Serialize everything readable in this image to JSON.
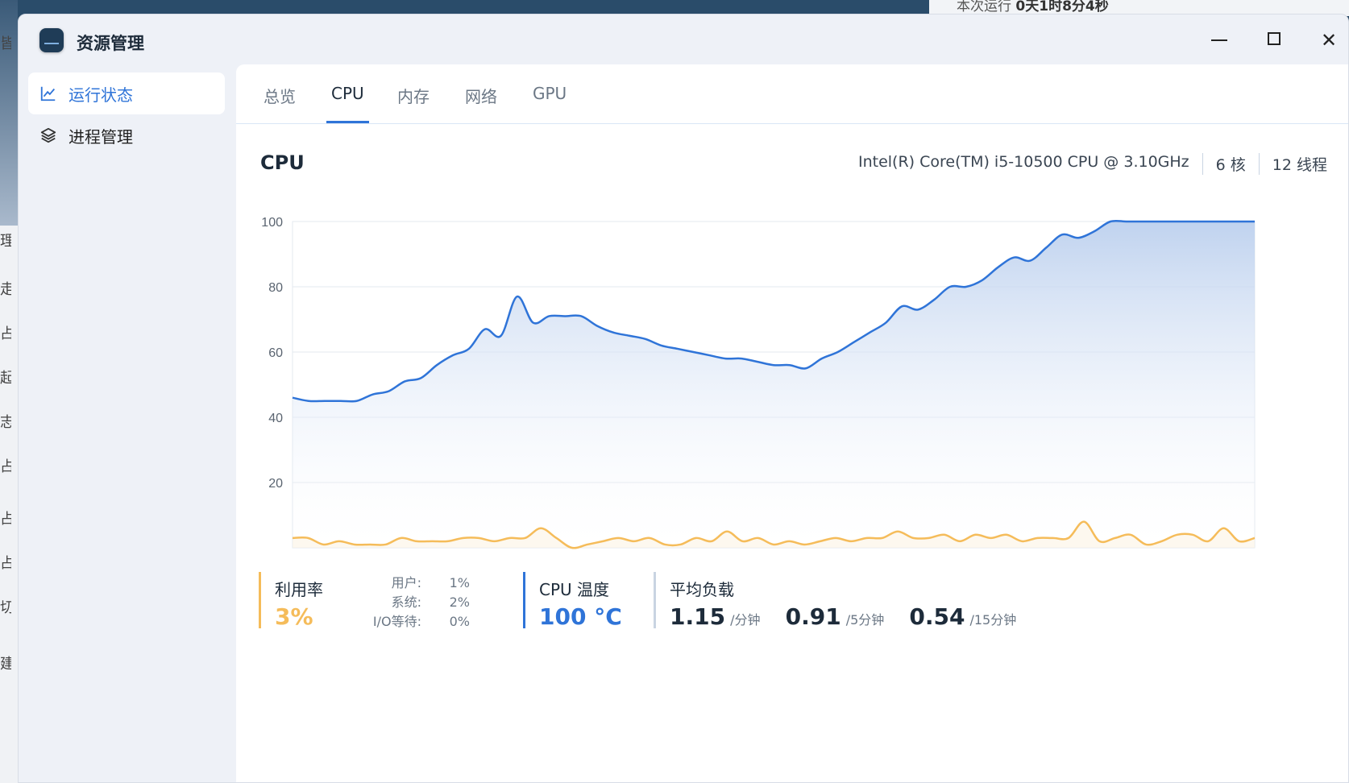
{
  "background": {
    "uptime_label": "本次运行",
    "uptime_value": "0天1时8分4秒",
    "left_glyphs": [
      "皆",
      "理",
      "走",
      "占",
      "起",
      "志",
      "占",
      "占",
      "占",
      "切",
      "建"
    ]
  },
  "window": {
    "title": "资源管理",
    "minimize_label": "—",
    "maximize_label": "□",
    "close_label": "✕"
  },
  "sidebar": {
    "items": [
      {
        "label": "运行状态",
        "icon": "line-chart-icon",
        "active": true
      },
      {
        "label": "进程管理",
        "icon": "layers-icon",
        "active": false
      }
    ]
  },
  "tabs": [
    {
      "label": "总览",
      "active": false
    },
    {
      "label": "CPU",
      "active": true
    },
    {
      "label": "内存",
      "active": false
    },
    {
      "label": "网络",
      "active": false
    },
    {
      "label": "GPU",
      "active": false
    }
  ],
  "cpu": {
    "title": "CPU",
    "model": "Intel(R) Core(TM) i5-10500 CPU @ 3.10GHz",
    "cores": "6 核",
    "threads": "12 线程"
  },
  "stats": {
    "usage_label": "利用率",
    "usage_value": "3%",
    "user_label": "用户:",
    "user_value": "1%",
    "system_label": "系统:",
    "system_value": "2%",
    "io_label": "I/O等待:",
    "io_value": "0%",
    "temp_label": "CPU 温度",
    "temp_value": "100 °C",
    "load_label": "平均负载",
    "load1": "1.15",
    "load1_unit": "/分钟",
    "load5": "0.91",
    "load5_unit": "/5分钟",
    "load15": "0.54",
    "load15_unit": "/15分钟"
  },
  "colors": {
    "accent": "#2f74d8",
    "usage": "#f5bc5a",
    "temp": "#2f74d8",
    "load": "#c9d4e2"
  },
  "chart_data": {
    "type": "line",
    "ylim": [
      0,
      100
    ],
    "yticks": [
      20,
      40,
      60,
      80,
      100
    ],
    "grid": true,
    "series": [
      {
        "values": [
          46,
          45,
          45,
          45,
          45,
          47,
          48,
          51,
          52,
          56,
          59,
          61,
          67,
          65,
          77,
          69,
          71,
          71,
          71,
          68,
          66,
          65,
          64,
          62,
          61,
          60,
          59,
          58,
          58,
          57,
          56,
          56,
          55,
          58,
          60,
          63,
          66,
          69,
          74,
          73,
          76,
          80,
          80,
          82,
          86,
          89,
          88,
          92,
          96,
          95,
          97,
          100,
          100,
          100,
          100,
          100,
          100,
          100,
          100,
          100,
          100
        ]
      },
      {
        "values": [
          3,
          3,
          1,
          2,
          1,
          1,
          1,
          3,
          2,
          2,
          2,
          3,
          3,
          2,
          3,
          3,
          6,
          3,
          0,
          1,
          2,
          3,
          2,
          3,
          1,
          1,
          3,
          2,
          5,
          2,
          3,
          1,
          2,
          1,
          2,
          3,
          2,
          3,
          3,
          5,
          3,
          3,
          4,
          2,
          4,
          3,
          4,
          2,
          3,
          3,
          3,
          8,
          2,
          3,
          4,
          1,
          2,
          4,
          4,
          2,
          6,
          2,
          3
        ]
      }
    ]
  }
}
